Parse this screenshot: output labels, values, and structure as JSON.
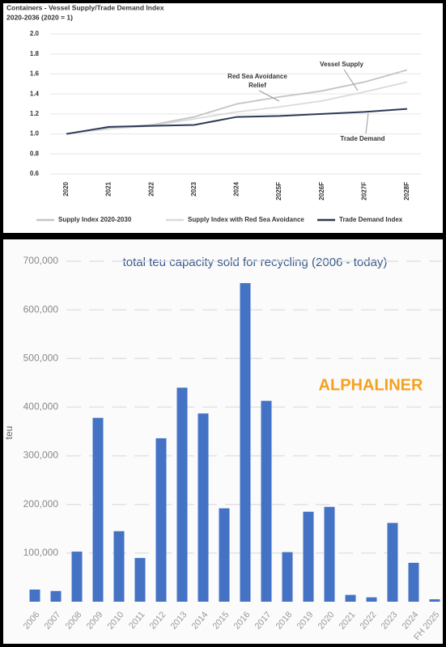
{
  "chart_data": [
    {
      "type": "line",
      "title": "Containers - Vessel Supply/Trade Demand Index",
      "subtitle": "2020-2036 (2020 = 1)",
      "categories": [
        "2020",
        "2021",
        "2022",
        "2023",
        "2024",
        "2025F",
        "2026F",
        "2027F",
        "2028F"
      ],
      "series": [
        {
          "name": "Supply Index 2020-2030",
          "color": "#c4c4c4",
          "values": [
            1.0,
            1.06,
            1.09,
            1.17,
            1.3,
            1.37,
            1.43,
            1.52,
            1.64
          ]
        },
        {
          "name": "Supply Index with Red Sea Avoidance",
          "color": "#dadada",
          "values": [
            1.0,
            1.05,
            1.08,
            1.15,
            1.22,
            1.27,
            1.33,
            1.42,
            1.52
          ]
        },
        {
          "name": "Trade Demand Index",
          "color": "#2b3a55",
          "values": [
            1.0,
            1.07,
            1.08,
            1.09,
            1.17,
            1.18,
            1.2,
            1.22,
            1.25
          ]
        }
      ],
      "annotations": [
        "Vessel Supply",
        "Red Sea Avoidance",
        "Relief",
        "Trade Demand"
      ],
      "ylim": [
        0.6,
        2.0
      ],
      "yticks": [
        0.6,
        0.8,
        {
          "value": 1.0,
          "label": "1.0"
        },
        1.2,
        1.4,
        1.6,
        1.8,
        {
          "value": 2.0,
          "label": "2.0"
        }
      ],
      "grid": true
    },
    {
      "type": "bar",
      "title": "total teu capacity sold for recycling (2006 - today)",
      "y_label": "teu",
      "watermark": "ALPHALINER",
      "categories": [
        "2006",
        "2007",
        "2008",
        "2009",
        "2010",
        "2011",
        "2012",
        "2013",
        "2014",
        "2015",
        "2016",
        "2017",
        "2018",
        "2019",
        "2020",
        "2021",
        "2022",
        "2023",
        "2024",
        "FH 2025"
      ],
      "values": [
        25000,
        22000,
        103000,
        378000,
        145000,
        90000,
        336000,
        440000,
        387000,
        192000,
        655000,
        413000,
        102000,
        185000,
        195000,
        14000,
        9000,
        162000,
        80000,
        5000
      ],
      "color": "#4472c4",
      "ylim": [
        0,
        700000
      ],
      "yticks": [
        {
          "value": 100000,
          "label": "100,000"
        },
        {
          "value": 200000,
          "label": "200,000"
        },
        {
          "value": 300000,
          "label": "300,000"
        },
        {
          "value": 400000,
          "label": "400,000"
        },
        {
          "value": 500000,
          "label": "500,000"
        },
        {
          "value": 600000,
          "label": "600,000"
        },
        {
          "value": 700000,
          "label": "700,000"
        }
      ],
      "grid": true
    }
  ]
}
